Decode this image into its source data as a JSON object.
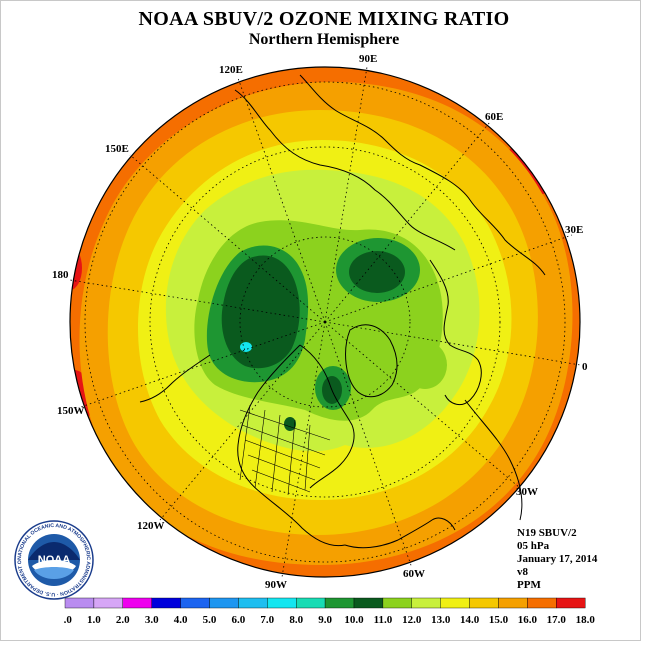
{
  "header": {
    "title": "NOAA SBUV/2 OZONE MIXING RATIO",
    "subtitle": "Northern Hemisphere"
  },
  "map": {
    "projection": "north polar stereographic",
    "longitude_labels": [
      "90E",
      "60E",
      "30E",
      "0",
      "30W",
      "60W",
      "90W",
      "120W",
      "150W",
      "180",
      "150E",
      "120E"
    ]
  },
  "info": {
    "satellite": "N19 SBUV/2",
    "level": "05 hPa",
    "date": "January 17, 2014",
    "version": "v8",
    "units": "PPM"
  },
  "logo": {
    "text": "NOAA",
    "ring_text": "NATIONAL OCEANIC AND ATMOSPHERIC ADMINISTRATION · U.S. DEPARTMENT OF COMMERCE"
  },
  "legend": {
    "labels": [
      "0.0",
      "1.0",
      "2.0",
      "3.0",
      "4.0",
      "5.0",
      "6.0",
      "7.0",
      "8.0",
      "9.0",
      "10.0",
      "11.0",
      "12.0",
      "13.0",
      "14.0",
      "15.0",
      "16.0",
      "17.0",
      "18.0"
    ],
    "colors": [
      "#b98cf0",
      "#d6a6f6",
      "#ee00ee",
      "#0000dc",
      "#1c64f0",
      "#1e96f0",
      "#1ebef0",
      "#14e6f0",
      "#18dcb4",
      "#1e9632",
      "#0a5a1e",
      "#8cd21e",
      "#c8f03c",
      "#f0f014",
      "#f5c800",
      "#f5a000",
      "#f56e00",
      "#e61414",
      "#8c5a3c"
    ]
  },
  "contour_colors": {
    "c9": "#1e9632",
    "c10": "#0a5a1e",
    "c11": "#8cd21e",
    "c12": "#c8f03c",
    "c13": "#f0f014",
    "c14": "#f5c800",
    "c15": "#f5a000",
    "c16": "#f56e00",
    "c17": "#e61414",
    "c7": "#14e6f0"
  }
}
